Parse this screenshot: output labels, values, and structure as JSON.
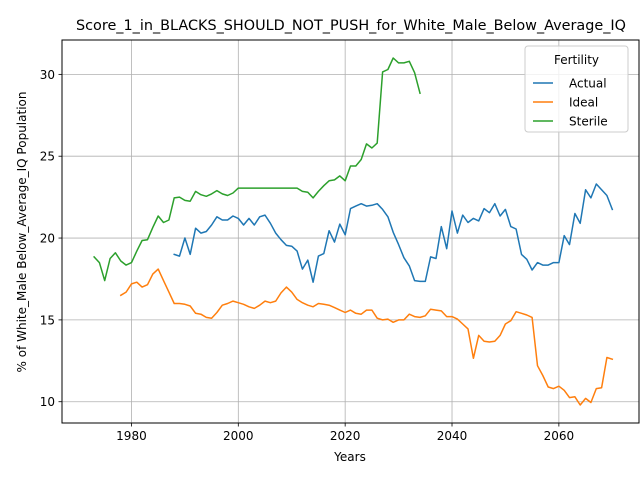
{
  "chart_data": {
    "type": "line",
    "title": "Score_1_in_BLACKS_SHOULD_NOT_PUSH_for_White_Male_Below_Average_IQ",
    "xlabel": "Years",
    "ylabel": "% of White_Male Below_Average_IQ Population",
    "xlim": [
      1967,
      2075
    ],
    "ylim": [
      8.7,
      32.1
    ],
    "xticks": [
      1980,
      2000,
      2020,
      2040,
      2060
    ],
    "yticks": [
      10,
      15,
      20,
      25,
      30
    ],
    "grid": true,
    "legend": {
      "title": "Fertility",
      "placement": "top-right"
    },
    "series": [
      {
        "name": "Actual",
        "color": "#1f77b4",
        "x": [
          1988,
          1989,
          1990,
          1991,
          1992,
          1993,
          1994,
          1995,
          1996,
          1997,
          1998,
          1999,
          2000,
          2001,
          2002,
          2003,
          2004,
          2005,
          2006,
          2007,
          2008,
          2009,
          2010,
          2011,
          2012,
          2013,
          2014,
          2015,
          2016,
          2017,
          2018,
          2019,
          2020,
          2021,
          2022,
          2023,
          2024,
          2025,
          2026,
          2027,
          2028,
          2029,
          2030,
          2031,
          2032,
          2033,
          2034,
          2035,
          2036,
          2037,
          2038,
          2039,
          2040,
          2041,
          2042,
          2043,
          2044,
          2045,
          2046,
          2047,
          2048,
          2049,
          2050,
          2051,
          2052,
          2053,
          2054,
          2055,
          2056,
          2057,
          2058,
          2059,
          2060,
          2061,
          2062,
          2063,
          2064,
          2065,
          2066,
          2067,
          2068,
          2069,
          2070
        ],
        "values": [
          19.0,
          18.9,
          20.0,
          19.0,
          20.6,
          20.3,
          20.4,
          20.8,
          21.3,
          21.1,
          21.1,
          21.35,
          21.2,
          20.8,
          21.2,
          20.8,
          21.3,
          21.4,
          20.9,
          20.3,
          19.9,
          19.55,
          19.5,
          19.2,
          18.1,
          18.65,
          17.3,
          18.9,
          19.05,
          20.45,
          19.75,
          20.85,
          20.2,
          21.8,
          21.95,
          22.1,
          21.95,
          22.0,
          22.1,
          21.75,
          21.3,
          20.35,
          19.6,
          18.8,
          18.3,
          17.4,
          17.35,
          17.35,
          18.85,
          18.75,
          20.7,
          19.35,
          21.65,
          20.3,
          21.4,
          20.95,
          21.2,
          21.05,
          21.8,
          21.55,
          22.1,
          21.35,
          21.75,
          20.7,
          20.55,
          19.0,
          18.7,
          18.05,
          18.5,
          18.35,
          18.35,
          18.5,
          18.5,
          20.15,
          19.6,
          21.5,
          20.9,
          22.95,
          22.45,
          23.3,
          22.95,
          22.6,
          21.75
        ]
      },
      {
        "name": "Ideal",
        "color": "#ff7f0e",
        "x": [
          1978,
          1979,
          1980,
          1981,
          1982,
          1983,
          1984,
          1985,
          1986,
          1987,
          1988,
          1989,
          1990,
          1991,
          1992,
          1993,
          1994,
          1995,
          1996,
          1997,
          1998,
          1999,
          2000,
          2001,
          2002,
          2003,
          2004,
          2005,
          2006,
          2007,
          2008,
          2009,
          2010,
          2011,
          2012,
          2013,
          2014,
          2015,
          2016,
          2017,
          2018,
          2019,
          2020,
          2021,
          2022,
          2023,
          2024,
          2025,
          2026,
          2027,
          2028,
          2029,
          2030,
          2031,
          2032,
          2033,
          2034,
          2035,
          2036,
          2037,
          2038,
          2039,
          2040,
          2041,
          2042,
          2043,
          2044,
          2045,
          2046,
          2047,
          2048,
          2049,
          2050,
          2051,
          2052,
          2053,
          2054,
          2055,
          2056,
          2057,
          2058,
          2059,
          2060,
          2061,
          2062,
          2063,
          2064,
          2065,
          2066,
          2067,
          2068,
          2069,
          2070
        ],
        "values": [
          16.5,
          16.7,
          17.2,
          17.3,
          17.0,
          17.15,
          17.8,
          18.1,
          17.4,
          16.7,
          16.0,
          16.0,
          15.95,
          15.85,
          15.4,
          15.35,
          15.15,
          15.1,
          15.45,
          15.9,
          16.0,
          16.15,
          16.05,
          15.95,
          15.8,
          15.7,
          15.9,
          16.15,
          16.05,
          16.15,
          16.65,
          17.0,
          16.7,
          16.25,
          16.05,
          15.9,
          15.8,
          16.0,
          15.95,
          15.9,
          15.75,
          15.6,
          15.45,
          15.6,
          15.4,
          15.35,
          15.6,
          15.6,
          15.1,
          15.0,
          15.05,
          14.85,
          15.0,
          15.0,
          15.35,
          15.2,
          15.15,
          15.25,
          15.65,
          15.6,
          15.55,
          15.2,
          15.2,
          15.05,
          14.75,
          14.45,
          12.65,
          14.05,
          13.7,
          13.65,
          13.7,
          14.05,
          14.75,
          14.95,
          15.5,
          15.4,
          15.3,
          15.15,
          12.2,
          11.6,
          10.9,
          10.8,
          10.95,
          10.7,
          10.25,
          10.3,
          9.8,
          10.2,
          9.95,
          10.8,
          10.85,
          12.7,
          12.6
        ]
      },
      {
        "name": "Sterile",
        "color": "#2ca02c",
        "x": [
          1973,
          1974,
          1975,
          1976,
          1977,
          1978,
          1979,
          1980,
          1981,
          1982,
          1983,
          1984,
          1985,
          1986,
          1987,
          1988,
          1989,
          1990,
          1991,
          1992,
          1993,
          1994,
          1995,
          1996,
          1997,
          1998,
          1999,
          2000,
          2001,
          2002,
          2003,
          2004,
          2005,
          2006,
          2007,
          2008,
          2009,
          2010,
          2011,
          2012,
          2013,
          2014,
          2015,
          2016,
          2017,
          2018,
          2019,
          2020,
          2021,
          2022,
          2023,
          2024,
          2025,
          2026,
          2027,
          2028,
          2029,
          2030,
          2031,
          2032,
          2033,
          2034
        ],
        "values": [
          18.85,
          18.5,
          17.4,
          18.75,
          19.1,
          18.6,
          18.35,
          18.5,
          19.2,
          19.85,
          19.9,
          20.65,
          21.35,
          20.95,
          21.1,
          22.45,
          22.5,
          22.3,
          22.25,
          22.85,
          22.65,
          22.55,
          22.7,
          22.9,
          22.7,
          22.6,
          22.75,
          23.05,
          23.05,
          23.05,
          23.05,
          23.05,
          23.05,
          23.05,
          23.05,
          23.05,
          23.05,
          23.05,
          23.05,
          22.85,
          22.8,
          22.45,
          22.85,
          23.2,
          23.5,
          23.55,
          23.8,
          23.5,
          24.4,
          24.4,
          24.8,
          25.75,
          25.5,
          25.8,
          30.15,
          30.3,
          31.0,
          30.7,
          30.7,
          30.8,
          30.1,
          28.85
        ]
      }
    ]
  }
}
